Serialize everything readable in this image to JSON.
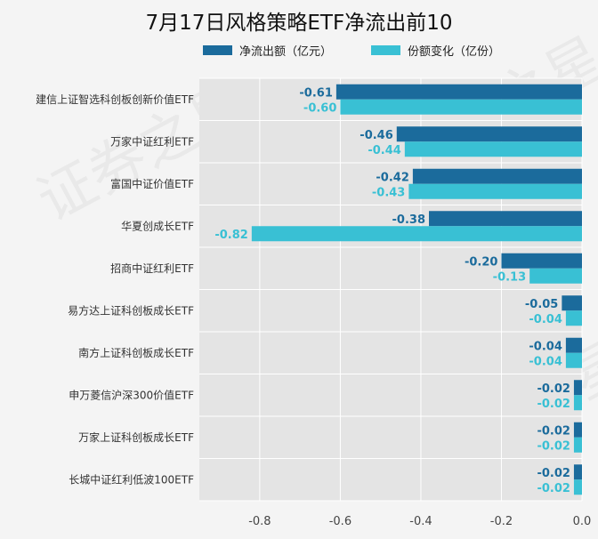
{
  "chart_data": {
    "type": "bar",
    "orientation": "horizontal",
    "title": "7月17日风格策略ETF净流出前10",
    "categories": [
      "建信上证智选科创板创新价值ETF",
      "万家中证红利ETF",
      "富国中证价值ETF",
      "华夏创成长ETF",
      "招商中证红利ETF",
      "易方达上证科创板成长ETF",
      "南方上证科创板成长ETF",
      "申万菱信沪深300价值ETF",
      "万家上证科创板成长ETF",
      "长城中证红利低波100ETF"
    ],
    "series": [
      {
        "name": "净流出额（亿元）",
        "color": "#1b6b9c",
        "values": [
          -0.61,
          -0.46,
          -0.42,
          -0.38,
          -0.2,
          -0.05,
          -0.04,
          -0.02,
          -0.02,
          -0.02
        ],
        "labels": [
          "-0.61",
          "-0.46",
          "-0.42",
          "-0.38",
          "-0.20",
          "-0.05",
          "-0.04",
          "-0.02",
          "-0.02",
          "-0.02"
        ]
      },
      {
        "name": "份额变化（亿份）",
        "color": "#39c0d4",
        "values": [
          -0.6,
          -0.44,
          -0.43,
          -0.82,
          -0.13,
          -0.04,
          -0.04,
          -0.02,
          -0.02,
          -0.02
        ],
        "labels": [
          "-0.60",
          "-0.44",
          "-0.43",
          "-0.82",
          "-0.13",
          "-0.04",
          "-0.04",
          "-0.02",
          "-0.02",
          "-0.02"
        ]
      }
    ],
    "xlim": [
      -0.95,
      0.0
    ],
    "xticks": [
      -0.8,
      -0.6,
      -0.4,
      -0.2,
      0.0
    ],
    "xtick_labels": [
      "-0.8",
      "-0.6",
      "-0.4",
      "-0.2",
      "0.0"
    ],
    "grid": true,
    "legend_position": "top",
    "watermark_text": "证券之星"
  }
}
